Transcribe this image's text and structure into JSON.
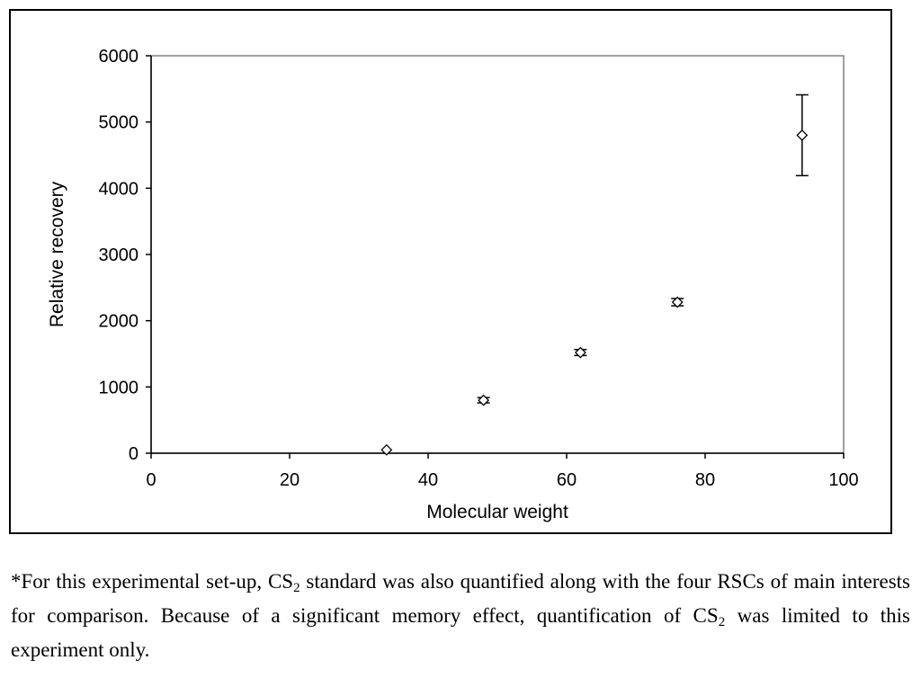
{
  "chart_data": {
    "type": "scatter",
    "xlabel": "Molecular weight",
    "ylabel": "Relative recovery",
    "xlim": [
      0,
      100
    ],
    "ylim": [
      0,
      6000
    ],
    "x_ticks": [
      0,
      20,
      40,
      60,
      80,
      100
    ],
    "y_ticks": [
      0,
      1000,
      2000,
      3000,
      4000,
      5000,
      6000
    ],
    "grid": false,
    "legend": "none",
    "marker": "diamond",
    "points": [
      {
        "x": 34,
        "y": 50,
        "err": 0
      },
      {
        "x": 48,
        "y": 800,
        "err": 40
      },
      {
        "x": 62,
        "y": 1520,
        "err": 45
      },
      {
        "x": 76,
        "y": 2280,
        "err": 55
      },
      {
        "x": 94,
        "y": 4800,
        "err": 610
      }
    ]
  },
  "caption": {
    "p1": "*For this experimental set-up, CS",
    "sub1": "2",
    "p2": " standard was also quantified along with the four RSCs of main interests for comparison. Because of a significant memory effect, quantification of CS",
    "sub2": "2",
    "p3": " was limited to this experiment only."
  }
}
